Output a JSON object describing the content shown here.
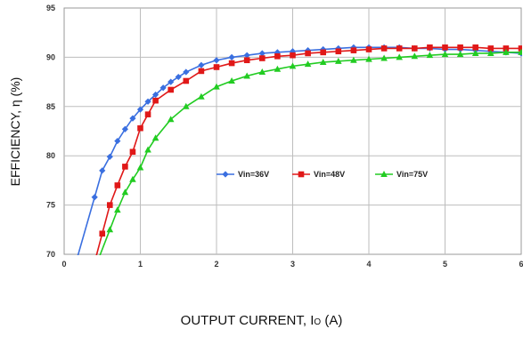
{
  "chart_data": {
    "type": "line",
    "title": "",
    "xlabel": "OUTPUT CURRENT, I",
    "xlabel_sub": "O",
    "xlabel_unit": " (A)",
    "ylabel": "EFFICIENCY, η   (%)",
    "xlim": [
      0,
      6
    ],
    "ylim": [
      70,
      95
    ],
    "x_ticks": [
      0,
      1,
      2,
      3,
      4,
      5,
      6
    ],
    "y_ticks": [
      70,
      75,
      80,
      85,
      90,
      95
    ],
    "grid": true,
    "legend_position": "center-right",
    "series": [
      {
        "name": "Vin=36V",
        "color": "#3a6fe0",
        "marker": "diamond",
        "x": [
          0.4,
          0.5,
          0.6,
          0.7,
          0.8,
          0.9,
          1.0,
          1.1,
          1.2,
          1.3,
          1.4,
          1.5,
          1.6,
          1.8,
          2.0,
          2.2,
          2.4,
          2.6,
          2.8,
          3.0,
          3.2,
          3.4,
          3.6,
          3.8,
          4.0,
          4.2,
          4.4,
          4.6,
          4.8,
          5.0,
          5.2,
          5.4,
          5.6,
          5.8,
          6.0
        ],
        "y": [
          75.8,
          78.5,
          79.9,
          81.5,
          82.7,
          83.8,
          84.7,
          85.5,
          86.2,
          86.9,
          87.5,
          88.0,
          88.5,
          89.2,
          89.7,
          90.0,
          90.2,
          90.4,
          90.5,
          90.6,
          90.7,
          90.8,
          90.9,
          91.0,
          91.0,
          91.0,
          91.0,
          90.9,
          90.9,
          90.8,
          90.8,
          90.7,
          90.6,
          90.5,
          90.4
        ]
      },
      {
        "name": "Vin=48V",
        "color": "#e01818",
        "marker": "square",
        "x": [
          0.5,
          0.6,
          0.7,
          0.8,
          0.9,
          1.0,
          1.1,
          1.2,
          1.4,
          1.6,
          1.8,
          2.0,
          2.2,
          2.4,
          2.6,
          2.8,
          3.0,
          3.2,
          3.4,
          3.6,
          3.8,
          4.0,
          4.2,
          4.4,
          4.6,
          4.8,
          5.0,
          5.2,
          5.4,
          5.6,
          5.8,
          6.0
        ],
        "y": [
          72.1,
          75.0,
          77.0,
          78.9,
          80.4,
          82.8,
          84.2,
          85.6,
          86.7,
          87.6,
          88.6,
          89.0,
          89.4,
          89.7,
          89.9,
          90.1,
          90.2,
          90.4,
          90.5,
          90.6,
          90.7,
          90.8,
          90.9,
          90.9,
          90.9,
          91.0,
          91.0,
          91.0,
          91.0,
          90.9,
          90.9,
          90.9
        ]
      },
      {
        "name": "Vin=75V",
        "color": "#22cc22",
        "marker": "triangle",
        "x": [
          0.6,
          0.7,
          0.8,
          0.9,
          1.0,
          1.1,
          1.2,
          1.4,
          1.6,
          1.8,
          2.0,
          2.2,
          2.4,
          2.6,
          2.8,
          3.0,
          3.2,
          3.4,
          3.6,
          3.8,
          4.0,
          4.2,
          4.4,
          4.6,
          4.8,
          5.0,
          5.2,
          5.4,
          5.6,
          5.8,
          6.0
        ],
        "y": [
          72.5,
          74.5,
          76.3,
          77.6,
          78.8,
          80.6,
          81.8,
          83.7,
          85.0,
          86.0,
          87.0,
          87.6,
          88.1,
          88.5,
          88.8,
          89.1,
          89.3,
          89.5,
          89.6,
          89.7,
          89.8,
          89.9,
          90.0,
          90.1,
          90.2,
          90.3,
          90.3,
          90.4,
          90.4,
          90.5,
          90.5
        ]
      }
    ]
  }
}
